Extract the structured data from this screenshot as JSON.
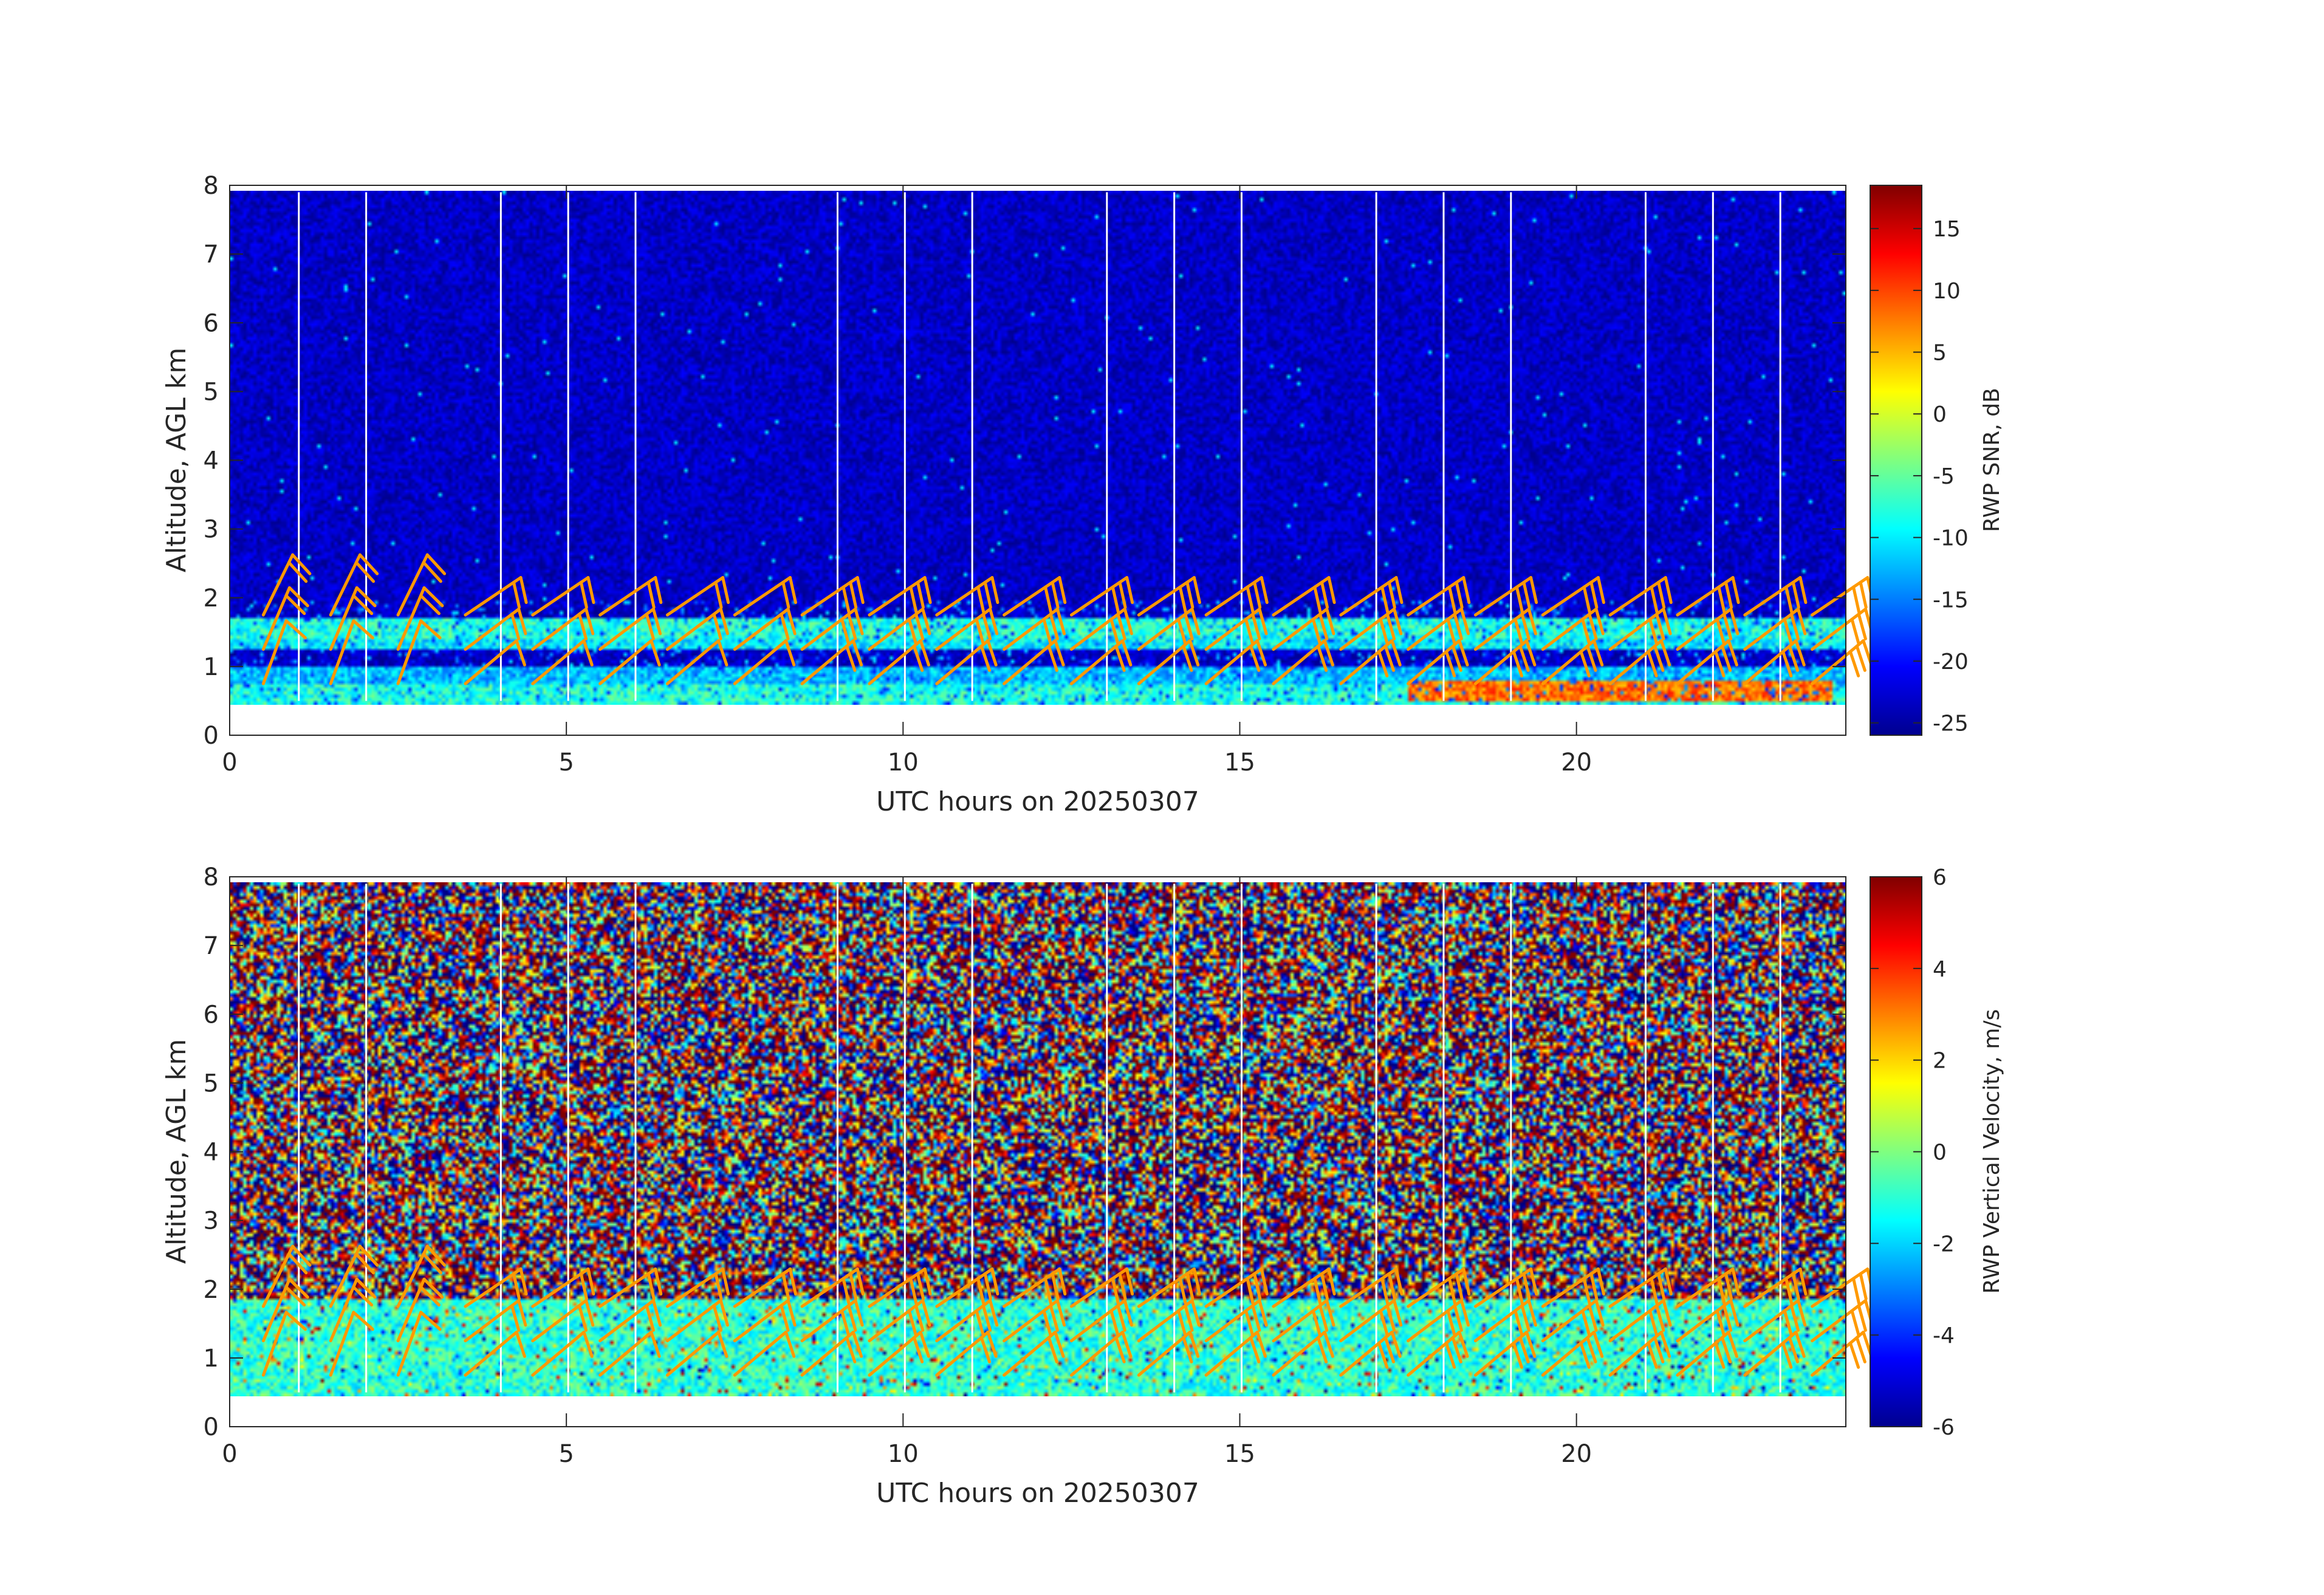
{
  "chart_data": [
    {
      "type": "heatmap",
      "title": "",
      "xlabel": "UTC hours on 20250307",
      "ylabel": "Altitude, AGL km",
      "xlim": [
        0,
        24
      ],
      "ylim": [
        0,
        8
      ],
      "xticks": [
        "0",
        "5",
        "10",
        "15",
        "20"
      ],
      "yticks": [
        "0",
        "1",
        "2",
        "3",
        "4",
        "5",
        "6",
        "7",
        "8"
      ],
      "colorbar": {
        "label": "RWP SNR, dB",
        "range": [
          -26,
          18.5
        ],
        "ticks": [
          "-25",
          "-20",
          "-15",
          "-10",
          "-5",
          "0",
          "5",
          "10",
          "15"
        ],
        "colormap": "jet"
      },
      "data_altitude_range_km": [
        0.5,
        7.9
      ],
      "background_level_db": -23,
      "layers": [
        {
          "altitude_km": [
            0.5,
            0.8
          ],
          "level_db": -8
        },
        {
          "altitude_km": [
            0.8,
            1.05
          ],
          "level_db": -12
        },
        {
          "altitude_km": [
            1.3,
            1.45
          ],
          "level_db": -10
        },
        {
          "altitude_km": [
            1.45,
            1.75
          ],
          "level_db": -8
        },
        {
          "altitude_km": [
            0.55,
            0.85
          ],
          "x_hours": [
            17.5,
            23.8
          ],
          "level_db": 8
        }
      ],
      "gap_hours": [
        1,
        2,
        4,
        5,
        6,
        9,
        10,
        11,
        13,
        14,
        15,
        17,
        18,
        19,
        21,
        22,
        23
      ],
      "wind_barbs": {
        "color": "#ff9900",
        "altitudes_km": [
          0.75,
          1.25,
          1.75
        ],
        "x_hours_step": 1,
        "x_hours_start": 0.5
      }
    },
    {
      "type": "heatmap",
      "title": "",
      "xlabel": "UTC hours on 20250307",
      "ylabel": "Altitude, AGL km",
      "xlim": [
        0,
        24
      ],
      "ylim": [
        0,
        8
      ],
      "xticks": [
        "0",
        "5",
        "10",
        "15",
        "20"
      ],
      "yticks": [
        "0",
        "1",
        "2",
        "3",
        "4",
        "5",
        "6",
        "7",
        "8"
      ],
      "colorbar": {
        "label": "RWP Vertical Velocity, m/s",
        "range": [
          -6,
          6
        ],
        "ticks": [
          "-6",
          "-4",
          "-2",
          "0",
          "2",
          "4",
          "6"
        ],
        "colormap": "jet"
      },
      "data_altitude_range_km": [
        0.5,
        7.9
      ],
      "upper_noise": "random -6 to 6",
      "lower_layer_km": [
        0.5,
        1.9
      ],
      "lower_level_ms": -1,
      "gap_hours": [
        1,
        2,
        4,
        5,
        6,
        9,
        10,
        11,
        13,
        14,
        15,
        17,
        18,
        19,
        21,
        22,
        23
      ],
      "wind_barbs": {
        "color": "#ff9900",
        "altitudes_km": [
          0.75,
          1.25,
          1.75
        ],
        "x_hours_step": 1,
        "x_hours_start": 0.5
      }
    }
  ]
}
